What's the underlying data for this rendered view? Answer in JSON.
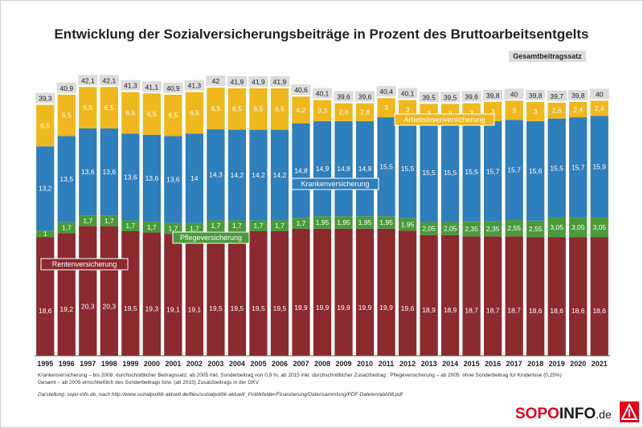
{
  "chart_data": {
    "type": "bar",
    "stacked": true,
    "title": "Entwicklung der Sozialversicherungsbeiträge in Prozent des Bruttoarbeitsentgelts",
    "categories": [
      "1995",
      "1996",
      "1997",
      "1998",
      "1999",
      "2000",
      "2001",
      "2002",
      "2003",
      "2004",
      "2005",
      "2006",
      "2007",
      "2008",
      "2009",
      "2010",
      "2011",
      "2012",
      "2013",
      "2014",
      "2015",
      "2016",
      "2017",
      "2018",
      "2019",
      "2020",
      "2021"
    ],
    "series": [
      {
        "name": "Rentenversicherung",
        "color": "#8b2a2f",
        "values": [
          "18,6",
          "19,2",
          "20,3",
          "20,3",
          "19,5",
          "19,3",
          "19,1",
          "19,1",
          "19,5",
          "19,5",
          "19,5",
          "19,5",
          "19,9",
          "19,9",
          "19,9",
          "19,9",
          "19,9",
          "19,6",
          "18,9",
          "18,9",
          "18,7",
          "18,7",
          "18,7",
          "18,6",
          "18,6",
          "18,6",
          "18,6"
        ]
      },
      {
        "name": "Pflegeversicherung",
        "color": "#4a9a3c",
        "values": [
          "1",
          "1,7",
          "1,7",
          "1,7",
          "1,7",
          "1,7",
          "1,7",
          "1,7",
          "1,7",
          "1,7",
          "1,7",
          "1,7",
          "1,7",
          "1,95",
          "1,95",
          "1,95",
          "1,95",
          "1,95",
          "2,05",
          "2,05",
          "2,35",
          "2,35",
          "2,55",
          "2,55",
          "3,05",
          "3,05",
          "3,05"
        ]
      },
      {
        "name": "Krankenversicherung",
        "color": "#2f7fbc",
        "values": [
          "13,2",
          "13,5",
          "13,6",
          "13,6",
          "13,6",
          "13,6",
          "13,6",
          "14",
          "14,3",
          "14,2",
          "14,2",
          "14,2",
          "14,8",
          "14,9",
          "14,9",
          "14,9",
          "15,5",
          "15,5",
          "15,5",
          "15,5",
          "15,5",
          "15,7",
          "15,7",
          "15,6",
          "15,5",
          "15,7",
          "15,9"
        ]
      },
      {
        "name": "Arbeitslosenversicherung",
        "color": "#efb81e",
        "values": [
          "6,5",
          "6,5",
          "6,5",
          "6,5",
          "6,5",
          "6,5",
          "6,5",
          "6,5",
          "6,5",
          "6,5",
          "6,5",
          "6,5",
          "4,2",
          "3,3",
          "2,8",
          "2,8",
          "3",
          "3",
          "3",
          "3",
          "3",
          "3",
          "3",
          "3",
          "2,5",
          "2,4",
          "2,4"
        ]
      }
    ],
    "totals_label": "Gesamtbeitragssatz",
    "totals": [
      "39,3",
      "40,9",
      "42,1",
      "42,1",
      "41,3",
      "41,1",
      "40,9",
      "41,3",
      "42",
      "41,9",
      "41,9",
      "41,9",
      "40,6",
      "40,1",
      "39,6",
      "39,6",
      "40,4",
      "40,1",
      "39,5",
      "39,5",
      "39,6",
      "39,8",
      "40",
      "39,8",
      "39,7",
      "39,8",
      "40"
    ],
    "ylim": [
      0,
      43
    ],
    "grid": false,
    "legend": "inline labels on bars"
  },
  "footnotes": [
    "Krankenversicherung – bis 2008: durchschnittlicher Beitragssatz; ab 2005 inkl. Sonderbeitrag von 0,9 %, ab 2015 inkl. durchschnittlicher Zusatzbeitrag ; Pflegeversicherung – ab 2005: ohne Sonderbeitrag für Kinderlose (0,25%)",
    "Gesamt – ab 2005 einschließlich des Sonderbeitrags bzw. (ab 2015) Zusatzbeitrags in der GKV"
  ],
  "source": "Darstellung: sopo-info.de, nach http://www.sozialpolitik-aktuell.de/files/sozialpolitik-aktuell/_Politikfelder/Finanzierung/Datensammlung/PDF-Dateien/abbII8.pdf",
  "logo": {
    "part1": "SOPO",
    "part2": "INFO",
    "part3": ".de"
  }
}
